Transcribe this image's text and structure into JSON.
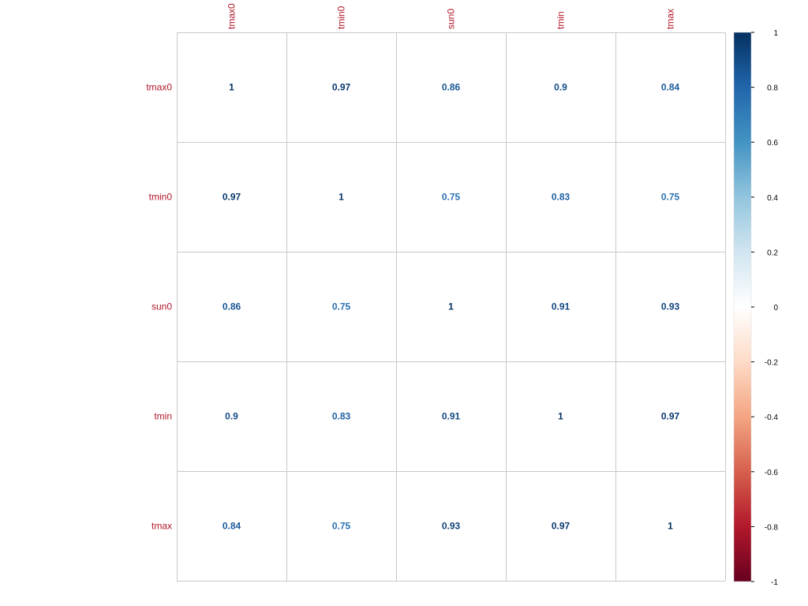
{
  "chart_data": {
    "type": "heatmap",
    "variables": [
      "tmax0",
      "tmin0",
      "sun0",
      "tmin",
      "tmax"
    ],
    "matrix": [
      [
        1,
        0.97,
        0.86,
        0.9,
        0.84
      ],
      [
        0.97,
        1,
        0.75,
        0.83,
        0.75
      ],
      [
        0.86,
        0.75,
        1,
        0.91,
        0.93
      ],
      [
        0.9,
        0.83,
        0.91,
        1,
        0.97
      ],
      [
        0.84,
        0.75,
        0.93,
        0.97,
        1
      ]
    ],
    "value_labels": [
      [
        "1",
        "0.97",
        "0.86",
        "0.9",
        "0.84"
      ],
      [
        "0.97",
        "1",
        "0.75",
        "0.83",
        "0.75"
      ],
      [
        "0.86",
        "0.75",
        "1",
        "0.91",
        "0.93"
      ],
      [
        "0.9",
        "0.83",
        "0.91",
        "1",
        "0.97"
      ],
      [
        "0.84",
        "0.75",
        "0.93",
        "0.97",
        "1"
      ]
    ],
    "colorbar": {
      "range": [
        -1,
        1
      ],
      "ticks": [
        "1",
        "0.8",
        "0.6",
        "0.4",
        "0.2",
        "0",
        "-0.2",
        "-0.4",
        "-0.6",
        "-0.8",
        "-1"
      ],
      "colors": [
        "#67001f",
        "#b2182b",
        "#d6604d",
        "#f4a582",
        "#fddbc7",
        "#ffffff",
        "#d1e5f0",
        "#92c5de",
        "#4393c3",
        "#2166ac",
        "#053061"
      ]
    },
    "label_color": "#b2182b",
    "grid_color": "#c8c8c8",
    "legend_position": "right"
  }
}
